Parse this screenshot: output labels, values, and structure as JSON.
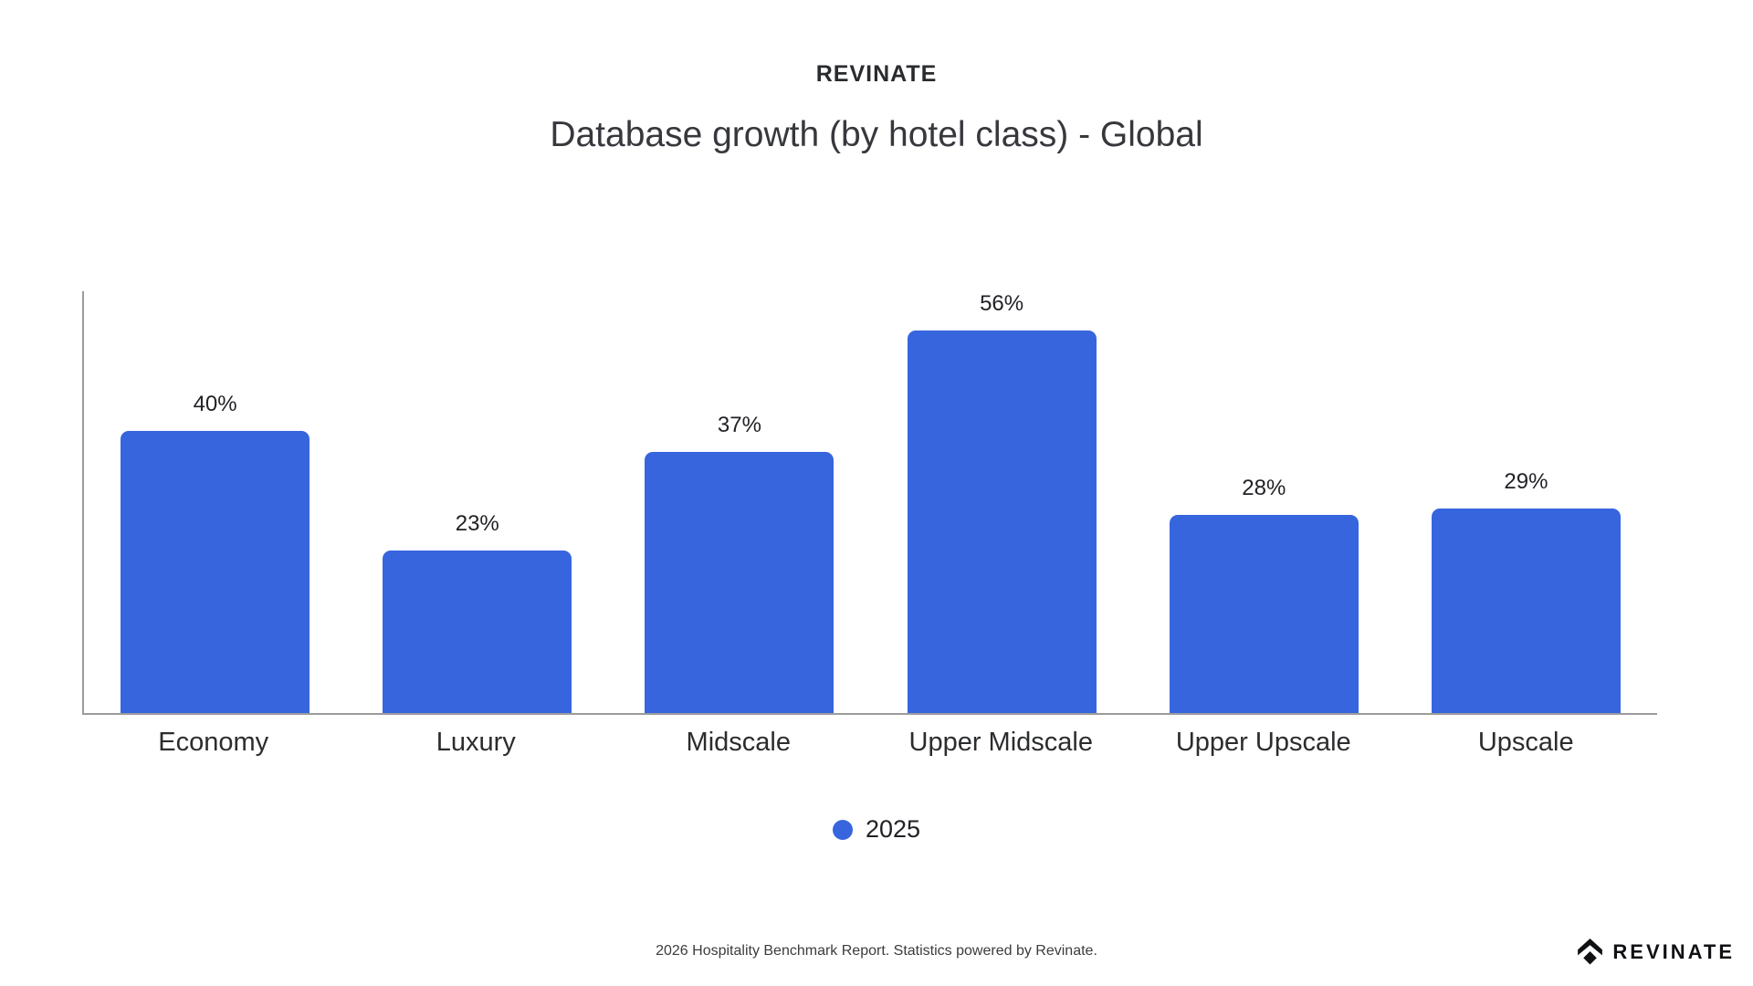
{
  "brand": {
    "eyebrow": "REVINATE",
    "logo_text": "REVINATE",
    "logo_color": "#101114"
  },
  "chart_data": {
    "type": "bar",
    "title": "Database growth (by hotel class) - Global",
    "categories": [
      "Economy",
      "Luxury",
      "Midscale",
      "Upper Midscale",
      "Upper Upscale",
      "Upscale"
    ],
    "values": [
      40,
      23,
      37,
      56,
      28,
      29
    ],
    "value_labels": [
      "40%",
      "23%",
      "37%",
      "56%",
      "28%",
      "29%"
    ],
    "series_name": "2025",
    "bar_color": "#3765de",
    "axis_color": "#9b9b9b",
    "ylim": [
      0,
      60
    ],
    "ylabel": "",
    "xlabel": "",
    "grid": false,
    "y_tick_labels_visible": false,
    "legend_position": "bottom"
  },
  "legend": {
    "items": [
      {
        "label": "2025",
        "color": "#3765de"
      }
    ]
  },
  "footer": {
    "note": "2026 Hospitality Benchmark Report. Statistics powered by Revinate."
  }
}
